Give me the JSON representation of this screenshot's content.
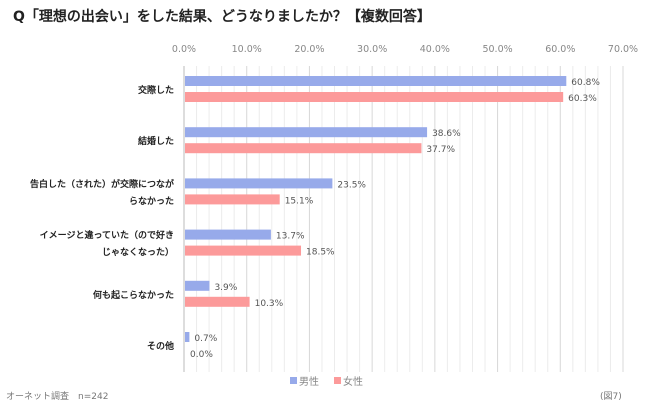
{
  "title": "Q「理想の出会い」をした結果、どうなりましたか？【複数回答】",
  "source": "オーネット調査　n=242",
  "figure_label": "(図7)",
  "chart_data": {
    "type": "bar",
    "orientation": "horizontal",
    "categories": [
      "交際した",
      "結婚した",
      "告白した（された）が交際につながらなかった",
      "イメージと違っていた（ので好きじゃなくなった）",
      "何も起こらなかった",
      "その他"
    ],
    "category_lines": [
      [
        "交際した"
      ],
      [
        "結婚した"
      ],
      [
        "告白した（された）が交際につなが",
        "らなかった"
      ],
      [
        "イメージと違っていた（ので好き",
        "じゃなくなった）"
      ],
      [
        "何も起こらなかった"
      ],
      [
        "その他"
      ]
    ],
    "series": [
      {
        "name": "男性",
        "color": "#97aaea",
        "values": [
          60.8,
          38.6,
          23.5,
          13.7,
          3.9,
          0.7
        ],
        "labels": [
          "60.8%",
          "38.6%",
          "23.5%",
          "13.7%",
          "3.9%",
          "0.7%"
        ]
      },
      {
        "name": "女性",
        "color": "#fc9a9a",
        "values": [
          60.3,
          37.7,
          15.1,
          18.5,
          10.3,
          0.0
        ],
        "labels": [
          "60.3%",
          "37.7%",
          "15.1%",
          "18.5%",
          "10.3%",
          "0.0%"
        ]
      }
    ],
    "xlim": [
      0,
      70
    ],
    "ticks": [
      "0.0%",
      "10.0%",
      "20.0%",
      "30.0%",
      "40.0%",
      "50.0%",
      "60.0%",
      "70.0%"
    ],
    "tick_values": [
      0,
      10,
      20,
      30,
      40,
      50,
      60,
      70
    ],
    "axis_position": "top",
    "grid": true,
    "legend": "bottom"
  }
}
